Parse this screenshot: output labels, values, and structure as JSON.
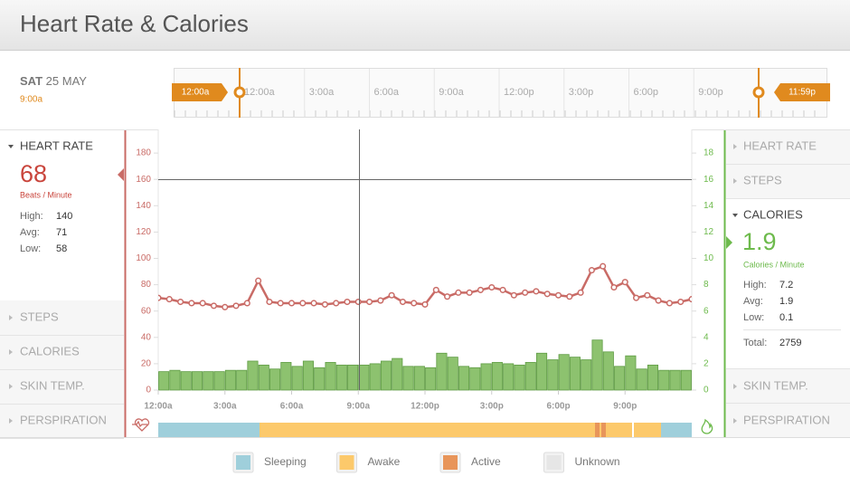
{
  "header": {
    "title": "Heart Rate & Calories"
  },
  "date": {
    "day": "SAT",
    "date": "25 MAY",
    "time": "9:00a"
  },
  "timeline": {
    "start": "12:00a",
    "end": "11:59p",
    "labels": [
      "12:00a",
      "3:00a",
      "6:00a",
      "9:00a",
      "12:00p",
      "3:00p",
      "6:00p",
      "9:00p"
    ]
  },
  "left_panel": {
    "active": {
      "title": "HEART RATE",
      "value": 68,
      "unit": "Beats / Minute",
      "stats": [
        {
          "label": "High:",
          "value": 140
        },
        {
          "label": "Avg:",
          "value": 71
        },
        {
          "label": "Low:",
          "value": 58
        }
      ]
    },
    "collapsed": [
      "STEPS",
      "CALORIES",
      "SKIN TEMP.",
      "PERSPIRATION"
    ]
  },
  "right_panel": {
    "collapsed_top": [
      "HEART RATE",
      "STEPS"
    ],
    "active": {
      "title": "CALORIES",
      "value": 1.9,
      "unit": "Calories / Minute",
      "stats": [
        {
          "label": "High:",
          "value": 7.2
        },
        {
          "label": "Avg:",
          "value": 1.9
        },
        {
          "label": "Low:",
          "value": 0.1
        }
      ],
      "total": {
        "label": "Total:",
        "value": 2759
      }
    },
    "collapsed_bottom": [
      "SKIN TEMP.",
      "PERSPIRATION"
    ]
  },
  "chart_data": {
    "type": "combo",
    "xlim": [
      0,
      24
    ],
    "xticks": [
      {
        "value": 0,
        "label": "12:00a"
      },
      {
        "value": 3,
        "label": "3:00a"
      },
      {
        "value": 6,
        "label": "6:00a"
      },
      {
        "value": 9,
        "label": "9:00a"
      },
      {
        "value": 12,
        "label": "12:00p"
      },
      {
        "value": 15,
        "label": "3:00p"
      },
      {
        "value": 18,
        "label": "6:00p"
      },
      {
        "value": 21,
        "label": "9:00p"
      }
    ],
    "ylim": [
      0,
      200
    ],
    "yticks": [
      0,
      20,
      40,
      60,
      80,
      100,
      120,
      140,
      160,
      180
    ],
    "y2lim": [
      0,
      20
    ],
    "y2ticks": [
      0,
      2,
      4,
      6,
      8,
      10,
      12,
      14,
      16,
      18
    ],
    "series": [
      {
        "type": "line",
        "color": "#c96b66",
        "x": [
          0,
          0.5,
          1,
          1.5,
          2,
          2.5,
          3,
          3.5,
          4,
          4.5,
          5,
          5.5,
          6,
          6.5,
          7,
          7.5,
          8,
          8.5,
          9,
          9.5,
          10,
          10.5,
          11,
          11.5,
          12,
          12.5,
          13,
          13.5,
          14,
          14.5,
          15,
          15.5,
          16,
          16.5,
          17,
          17.5,
          18,
          18.5,
          19,
          19.5,
          20,
          20.5,
          21,
          21.5,
          22,
          22.5,
          23,
          23.5,
          24
        ],
        "values": [
          70,
          69,
          67,
          66,
          66,
          64,
          63,
          64,
          66,
          83,
          67,
          66,
          66,
          66,
          66,
          65,
          66,
          67,
          67,
          67,
          68,
          72,
          67,
          66,
          65,
          76,
          71,
          74,
          74,
          76,
          78,
          76,
          72,
          74,
          75,
          73,
          72,
          71,
          74,
          91,
          94,
          78,
          82,
          70,
          72,
          68,
          66,
          67,
          69
        ]
      },
      {
        "type": "bar",
        "axis": "y2",
        "color": "#8dc26f",
        "x": [
          0,
          0.5,
          1,
          1.5,
          2,
          2.5,
          3,
          3.5,
          4,
          4.5,
          5,
          5.5,
          6,
          6.5,
          7,
          7.5,
          8,
          8.5,
          9,
          9.5,
          10,
          10.5,
          11,
          11.5,
          12,
          12.5,
          13,
          13.5,
          14,
          14.5,
          15,
          15.5,
          16,
          16.5,
          17,
          17.5,
          18,
          18.5,
          19,
          19.5,
          20,
          20.5,
          21,
          21.5,
          22,
          22.5,
          23,
          23.5
        ],
        "values": [
          1.4,
          1.5,
          1.4,
          1.4,
          1.4,
          1.4,
          1.5,
          1.5,
          2.2,
          1.9,
          1.6,
          2.1,
          1.8,
          2.2,
          1.7,
          2.1,
          1.9,
          1.9,
          1.9,
          2.0,
          2.2,
          2.4,
          1.8,
          1.8,
          1.7,
          2.8,
          2.5,
          1.8,
          1.7,
          2.0,
          2.1,
          2.0,
          1.9,
          2.1,
          2.8,
          2.3,
          2.7,
          2.5,
          2.3,
          3.8,
          2.9,
          1.8,
          2.6,
          1.6,
          1.9,
          1.5,
          1.5,
          1.5
        ]
      }
    ]
  },
  "legend": [
    "Sleeping",
    "Awake",
    "Active",
    "Unknown"
  ]
}
